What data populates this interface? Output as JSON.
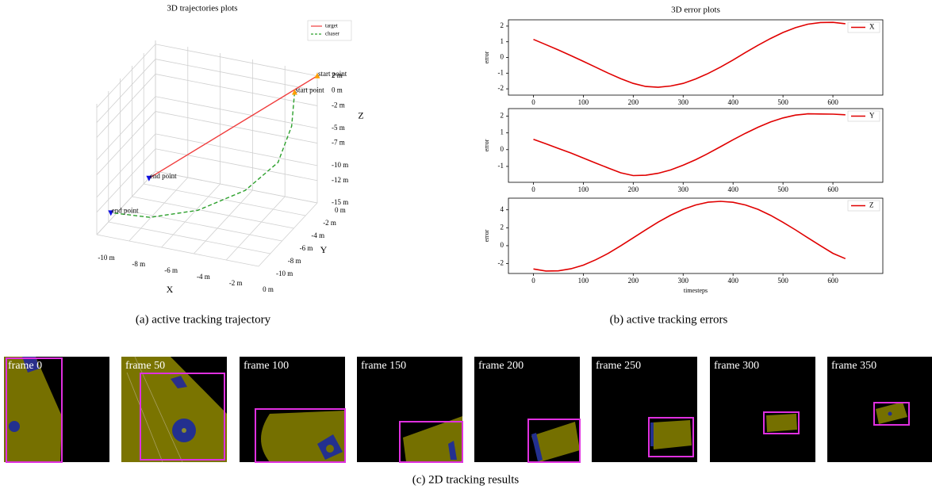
{
  "chart_data": [
    {
      "type": "line3d",
      "title": "3D trajectories plots",
      "xlabel": "X",
      "ylabel": "Y",
      "zlabel": "Z",
      "axis_label_color": "#1f1fd0",
      "xlim": [
        -10,
        0
      ],
      "ylim": [
        -10,
        0
      ],
      "zlim": [
        -15,
        2.5
      ],
      "xticks": [
        {
          "value": -10,
          "label": "-10 m"
        },
        {
          "value": -8,
          "label": "-8 m"
        },
        {
          "value": -6,
          "label": "-6 m"
        },
        {
          "value": -4,
          "label": "-4 m"
        },
        {
          "value": -2,
          "label": "-2 m"
        },
        {
          "value": 0,
          "label": "0 m"
        }
      ],
      "yticks": [
        {
          "value": 0,
          "label": "0 m"
        },
        {
          "value": -2,
          "label": "-2 m"
        },
        {
          "value": -4,
          "label": "-4 m"
        },
        {
          "value": -6,
          "label": "-6 m"
        },
        {
          "value": -8,
          "label": "-8 m"
        },
        {
          "value": -10,
          "label": "-10 m"
        }
      ],
      "zticks": [
        {
          "value": 2,
          "label": "2 m"
        },
        {
          "value": 0,
          "label": "0 m"
        },
        {
          "value": -2,
          "label": "-2 m"
        },
        {
          "value": -5,
          "label": "-5 m"
        },
        {
          "value": -7,
          "label": "-7 m"
        },
        {
          "value": -10,
          "label": "-10 m"
        },
        {
          "value": -12,
          "label": "-12 m"
        },
        {
          "value": -15,
          "label": "-15 m"
        }
      ],
      "grid": true,
      "legend": "upper right",
      "series": [
        {
          "name": "target",
          "color": "#f03c3c",
          "dashed": false,
          "x": [
            0,
            -10
          ],
          "y": [
            0,
            -1.1
          ],
          "z": [
            2,
            -15
          ]
        },
        {
          "name": "chaser",
          "color": "#2ca02c",
          "dashed": true,
          "x": [
            -1.4,
            -1.4,
            -1.7,
            -3.0,
            -5.2,
            -7.8,
            -10
          ],
          "y": [
            0,
            -0.5,
            -2,
            -4,
            -6,
            -7,
            -7.6
          ],
          "z": [
            -0.8,
            -4.9,
            -8.6,
            -11.2,
            -13.1,
            -14.3,
            -14.1
          ]
        }
      ],
      "points": [
        {
          "label": "start point",
          "x": 0,
          "y": 0,
          "z": 2,
          "color": "#ff9f00",
          "marker": "triangle-up"
        },
        {
          "label": "start point",
          "x": -1.4,
          "y": 0,
          "z": -0.8,
          "color": "#ff9f00",
          "marker": "triangle-up"
        },
        {
          "label": "end point",
          "x": -10,
          "y": -1.1,
          "z": -15,
          "color": "#1010e0",
          "marker": "triangle-down"
        },
        {
          "label": "end point",
          "x": -10,
          "y": -7.6,
          "z": -14.1,
          "color": "#1010e0",
          "marker": "triangle-down"
        }
      ]
    },
    {
      "type": "line",
      "title": "3D error plots",
      "ylabel": "error",
      "xlim": [
        -50,
        700
      ],
      "ylim": [
        -2.4,
        2.4
      ],
      "xticks": [
        0,
        100,
        200,
        300,
        400,
        500,
        600
      ],
      "yticks": [
        -2,
        -1,
        0,
        1,
        2
      ],
      "legend": "upper right",
      "x": [
        0,
        25,
        50,
        75,
        100,
        125,
        150,
        175,
        200,
        225,
        250,
        275,
        300,
        325,
        350,
        375,
        400,
        425,
        450,
        475,
        500,
        525,
        550,
        575,
        600,
        625
      ],
      "series": [
        {
          "name": "X",
          "color": "#e00000",
          "values": [
            1.15,
            0.82,
            0.48,
            0.12,
            -0.25,
            -0.62,
            -1.0,
            -1.35,
            -1.65,
            -1.85,
            -1.9,
            -1.82,
            -1.65,
            -1.37,
            -1.02,
            -0.61,
            -0.16,
            0.32,
            0.78,
            1.21,
            1.59,
            1.9,
            2.12,
            2.23,
            2.24,
            2.15
          ]
        }
      ]
    },
    {
      "type": "line",
      "ylabel": "error",
      "xlim": [
        -50,
        700
      ],
      "ylim": [
        -1.95,
        2.45
      ],
      "xticks": [
        0,
        100,
        200,
        300,
        400,
        500,
        600
      ],
      "yticks": [
        -1,
        0,
        1,
        2
      ],
      "legend": "upper right",
      "x": [
        0,
        25,
        50,
        75,
        100,
        125,
        150,
        175,
        200,
        225,
        250,
        275,
        300,
        325,
        350,
        375,
        400,
        425,
        450,
        475,
        500,
        525,
        550,
        575,
        600,
        625
      ],
      "series": [
        {
          "name": "Y",
          "color": "#e00000",
          "values": [
            0.62,
            0.35,
            0.07,
            -0.2,
            -0.5,
            -0.8,
            -1.1,
            -1.38,
            -1.55,
            -1.53,
            -1.41,
            -1.21,
            -0.93,
            -0.6,
            -0.23,
            0.18,
            0.59,
            0.98,
            1.34,
            1.65,
            1.89,
            2.06,
            2.14,
            2.13,
            2.12,
            2.08
          ]
        }
      ]
    },
    {
      "type": "line",
      "xlabel": "timesteps",
      "ylabel": "error",
      "xlim": [
        -50,
        700
      ],
      "ylim": [
        -3.1,
        5.3
      ],
      "xticks": [
        0,
        100,
        200,
        300,
        400,
        500,
        600
      ],
      "yticks": [
        -2,
        0,
        2,
        4
      ],
      "legend": "upper right",
      "x": [
        0,
        25,
        50,
        75,
        100,
        125,
        150,
        175,
        200,
        225,
        250,
        275,
        300,
        325,
        350,
        375,
        400,
        425,
        450,
        475,
        500,
        525,
        550,
        575,
        600,
        625
      ],
      "series": [
        {
          "name": "Z",
          "color": "#e00000",
          "values": [
            -2.6,
            -2.83,
            -2.81,
            -2.58,
            -2.17,
            -1.57,
            -0.85,
            -0.01,
            0.87,
            1.77,
            2.63,
            3.4,
            4.05,
            4.54,
            4.85,
            4.95,
            4.84,
            4.54,
            4.05,
            3.39,
            2.61,
            1.76,
            0.87,
            0.0,
            -0.85,
            -1.45
          ]
        }
      ]
    }
  ],
  "captions": [
    "(a) active tracking trajectory",
    "(b) active tracking errors",
    "(c) 2D tracking results"
  ],
  "frames": [
    {
      "label": "frame 0"
    },
    {
      "label": "frame 50"
    },
    {
      "label": "frame 100"
    },
    {
      "label": "frame 150"
    },
    {
      "label": "frame 200"
    },
    {
      "label": "frame 250"
    },
    {
      "label": "frame 300"
    },
    {
      "label": "frame 350"
    }
  ]
}
